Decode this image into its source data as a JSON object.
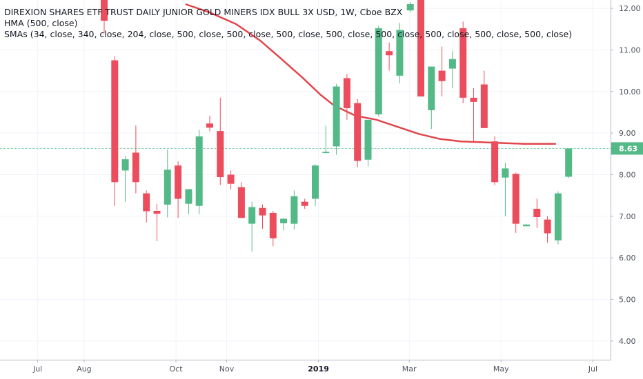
{
  "legend": {
    "title": "DIREXION SHARES ETF TRUST DAILY JUNIOR GOLD MINERS IDX BULL 3X USD, 1W, Cboe BZX",
    "hma": "HMA (500, close)",
    "smas": "SMAs (34, close, 340, close, 204, close, 500, close, 500, close, 500, close, 500, close, 500, close, 500, close, 500, close, 500, close)"
  },
  "last_price_label": "8.63",
  "colors": {
    "up": "#53b987",
    "down": "#eb4d5c",
    "hma": "#e0464a",
    "last_price_line": "#53b987",
    "grid": "#f0f3fa",
    "axis_border": "#b2b5be"
  },
  "chart_data": {
    "type": "candlestick",
    "interval": "1W",
    "ylim": [
      3.55,
      12.2
    ],
    "y_ticks": [
      4.0,
      5.0,
      6.0,
      7.0,
      8.0,
      9.0,
      10.0,
      11.0,
      12.0
    ],
    "y_tick_labels": [
      "4.00",
      "5.00",
      "6.00",
      "7.00",
      "8.00",
      "9.00",
      "10.00",
      "11.00",
      "12.00"
    ],
    "x_ticks": [
      {
        "label": "Jul",
        "index": -6.3,
        "bold": false
      },
      {
        "label": "Aug",
        "index": -1.9,
        "bold": false
      },
      {
        "label": "Oct",
        "index": 6.8,
        "bold": false
      },
      {
        "label": "Nov",
        "index": 11.6,
        "bold": false
      },
      {
        "label": "2019",
        "index": 20.3,
        "bold": true
      },
      {
        "label": "Mar",
        "index": 28.9,
        "bold": false
      },
      {
        "label": "May",
        "index": 37.6,
        "bold": false
      },
      {
        "label": "Jul",
        "index": 46.3,
        "bold": false
      }
    ],
    "candles": [
      {
        "o": 12.3,
        "h": 12.5,
        "l": 11.4,
        "c": 11.7
      },
      {
        "o": 10.75,
        "h": 10.85,
        "l": 7.25,
        "c": 7.82
      },
      {
        "o": 8.1,
        "h": 8.45,
        "l": 7.35,
        "c": 8.37
      },
      {
        "o": 8.53,
        "h": 9.18,
        "l": 7.55,
        "c": 7.82
      },
      {
        "o": 7.55,
        "h": 7.62,
        "l": 6.85,
        "c": 7.12
      },
      {
        "o": 7.13,
        "h": 7.3,
        "l": 6.4,
        "c": 7.06
      },
      {
        "o": 7.28,
        "h": 8.6,
        "l": 6.97,
        "c": 8.12
      },
      {
        "o": 8.22,
        "h": 8.32,
        "l": 6.96,
        "c": 7.42
      },
      {
        "o": 7.3,
        "h": 7.65,
        "l": 7.05,
        "c": 7.65
      },
      {
        "o": 7.25,
        "h": 9.08,
        "l": 7.05,
        "c": 8.92
      },
      {
        "o": 9.23,
        "h": 9.42,
        "l": 9.04,
        "c": 9.13
      },
      {
        "o": 9.05,
        "h": 9.85,
        "l": 7.75,
        "c": 7.94
      },
      {
        "o": 8.0,
        "h": 8.1,
        "l": 7.65,
        "c": 7.78
      },
      {
        "o": 7.7,
        "h": 7.82,
        "l": 6.96,
        "c": 6.96
      },
      {
        "o": 6.82,
        "h": 7.35,
        "l": 6.15,
        "c": 7.22
      },
      {
        "o": 7.2,
        "h": 7.28,
        "l": 6.7,
        "c": 7.02
      },
      {
        "o": 7.08,
        "h": 7.13,
        "l": 6.28,
        "c": 6.47
      },
      {
        "o": 6.83,
        "h": 6.95,
        "l": 6.66,
        "c": 6.94
      },
      {
        "o": 6.82,
        "h": 7.62,
        "l": 6.68,
        "c": 7.48
      },
      {
        "o": 7.35,
        "h": 7.42,
        "l": 7.18,
        "c": 7.25
      },
      {
        "o": 7.42,
        "h": 8.25,
        "l": 7.24,
        "c": 8.22
      },
      {
        "o": 8.52,
        "h": 9.18,
        "l": 8.52,
        "c": 8.55
      },
      {
        "o": 8.68,
        "h": 10.18,
        "l": 8.48,
        "c": 10.12
      },
      {
        "o": 10.32,
        "h": 10.42,
        "l": 9.32,
        "c": 9.6
      },
      {
        "o": 9.72,
        "h": 9.82,
        "l": 8.18,
        "c": 8.33
      },
      {
        "o": 8.36,
        "h": 9.32,
        "l": 8.2,
        "c": 9.32
      },
      {
        "o": 9.45,
        "h": 11.58,
        "l": 9.4,
        "c": 11.52
      },
      {
        "o": 10.97,
        "h": 11.18,
        "l": 10.5,
        "c": 10.87
      },
      {
        "o": 10.38,
        "h": 11.65,
        "l": 10.2,
        "c": 11.48
      },
      {
        "o": 11.95,
        "h": 12.15,
        "l": 11.9,
        "c": 12.1
      },
      {
        "o": 12.35,
        "h": 12.45,
        "l": 9.95,
        "c": 9.88
      },
      {
        "o": 9.55,
        "h": 10.55,
        "l": 9.1,
        "c": 10.6
      },
      {
        "o": 10.5,
        "h": 11.08,
        "l": 9.88,
        "c": 10.25
      },
      {
        "o": 10.55,
        "h": 10.97,
        "l": 10.08,
        "c": 10.78
      },
      {
        "o": 11.52,
        "h": 11.68,
        "l": 9.72,
        "c": 9.85
      },
      {
        "o": 9.85,
        "h": 10.08,
        "l": 8.8,
        "c": 9.75
      },
      {
        "o": 10.17,
        "h": 10.5,
        "l": 9.12,
        "c": 9.12
      },
      {
        "o": 8.8,
        "h": 8.92,
        "l": 7.75,
        "c": 7.82
      },
      {
        "o": 7.93,
        "h": 8.28,
        "l": 7.0,
        "c": 8.15
      },
      {
        "o": 8.02,
        "h": 8.05,
        "l": 6.6,
        "c": 6.82
      },
      {
        "o": 6.76,
        "h": 6.82,
        "l": 6.76,
        "c": 6.8
      },
      {
        "o": 7.18,
        "h": 7.42,
        "l": 6.72,
        "c": 6.98
      },
      {
        "o": 6.92,
        "h": 7.0,
        "l": 6.36,
        "c": 6.59
      },
      {
        "o": 6.42,
        "h": 7.6,
        "l": 6.32,
        "c": 7.55
      },
      {
        "o": 7.95,
        "h": 8.63,
        "l": 7.92,
        "c": 8.63
      }
    ],
    "hma_series": {
      "name": "HMA (500, close)",
      "points": [
        {
          "i": 7.7,
          "v": 12.1
        },
        {
          "i": 10.0,
          "v": 11.9
        },
        {
          "i": 12.5,
          "v": 11.62
        },
        {
          "i": 14.8,
          "v": 11.22
        },
        {
          "i": 16.8,
          "v": 10.78
        },
        {
          "i": 18.8,
          "v": 10.33
        },
        {
          "i": 20.5,
          "v": 9.92
        },
        {
          "i": 21.8,
          "v": 9.66
        },
        {
          "i": 23.8,
          "v": 9.42
        },
        {
          "i": 25.8,
          "v": 9.32
        },
        {
          "i": 27.8,
          "v": 9.15
        },
        {
          "i": 29.8,
          "v": 8.98
        },
        {
          "i": 31.8,
          "v": 8.86
        },
        {
          "i": 33.8,
          "v": 8.8
        },
        {
          "i": 35.8,
          "v": 8.78
        },
        {
          "i": 37.8,
          "v": 8.76
        },
        {
          "i": 39.8,
          "v": 8.74
        },
        {
          "i": 42.8,
          "v": 8.74
        }
      ]
    }
  }
}
